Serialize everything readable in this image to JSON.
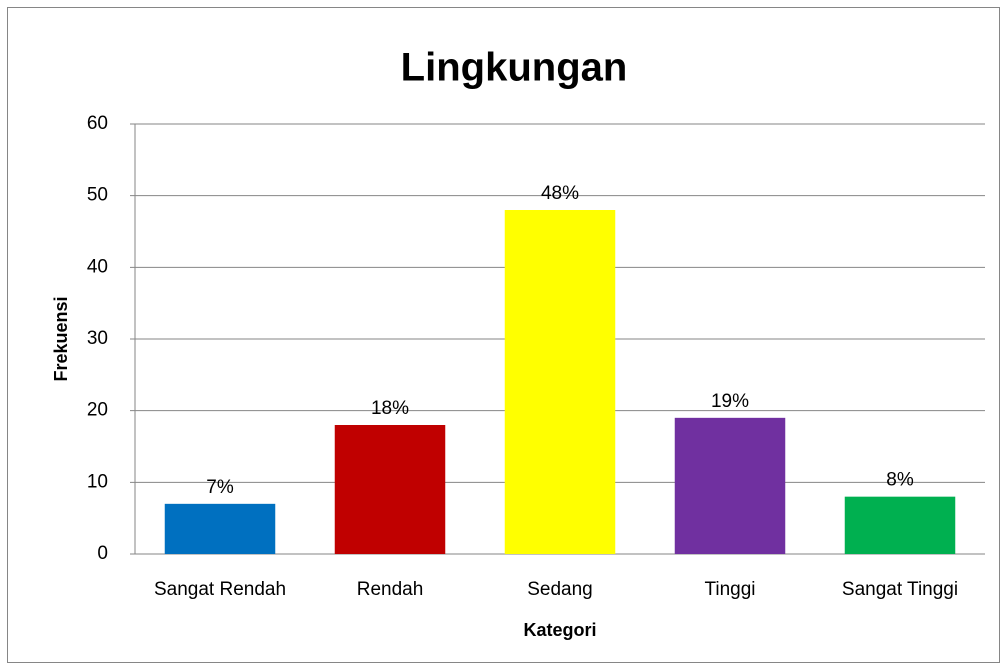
{
  "chart_data": {
    "type": "bar",
    "title": "Lingkungan",
    "categories": [
      "Sangat Rendah",
      "Rendah",
      "Sedang",
      "Tinggi",
      "Sangat Tinggi"
    ],
    "values": [
      7,
      18,
      48,
      19,
      8
    ],
    "value_labels": [
      "7%",
      "18%",
      "48%",
      "19%",
      "8%"
    ],
    "colors": [
      "#0070c0",
      "#c00000",
      "#ffff00",
      "#7030a0",
      "#00b050"
    ],
    "xlabel": "Kategori",
    "ylabel": "Frekuensi",
    "ylim": [
      0,
      60
    ],
    "yticks": [
      0,
      10,
      20,
      30,
      40,
      50,
      60
    ],
    "grid": true
  }
}
